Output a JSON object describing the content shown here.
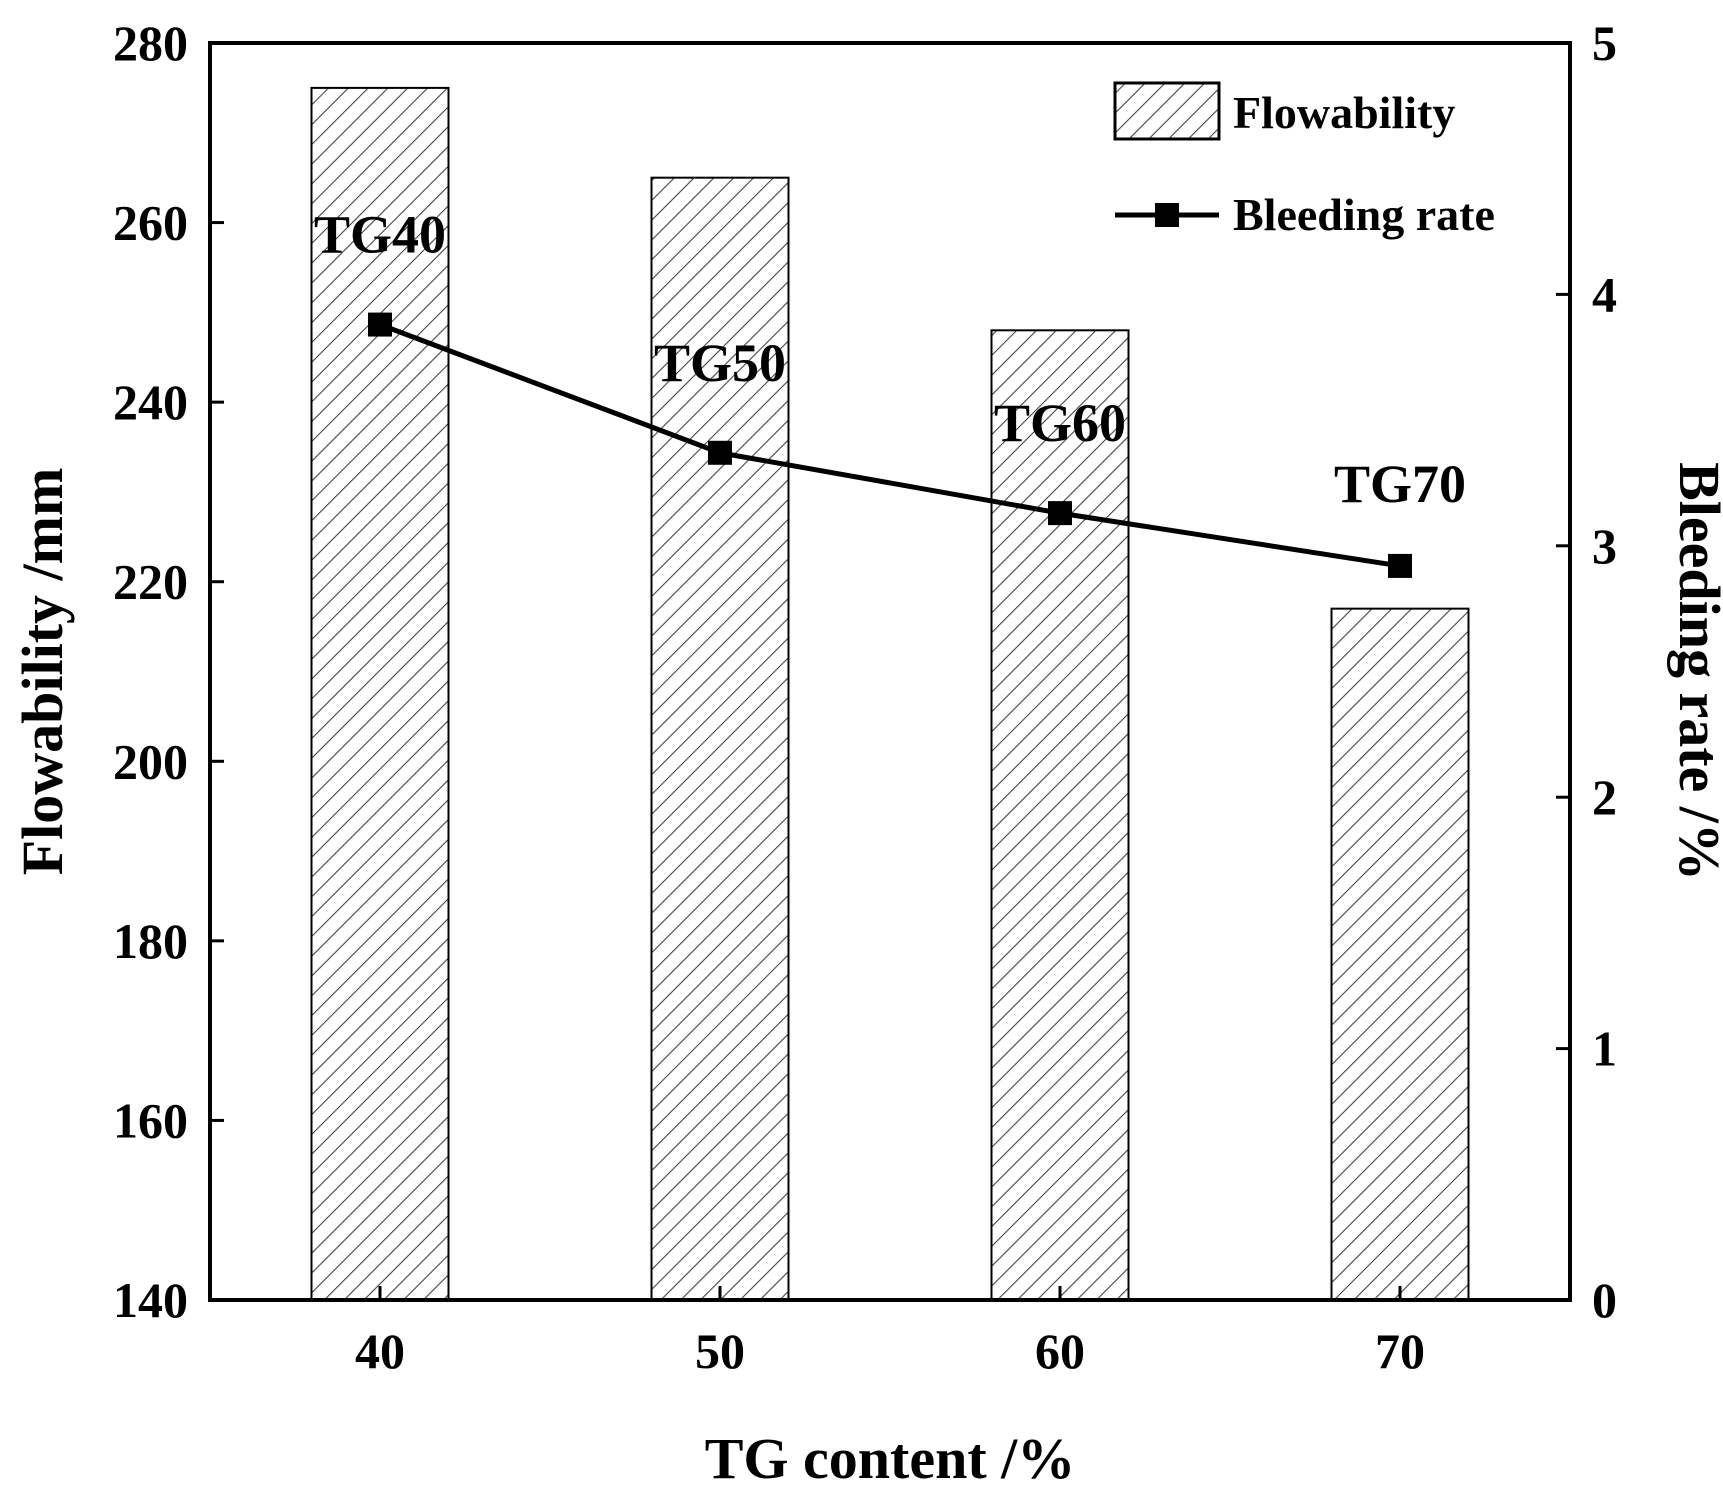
{
  "chart_data": {
    "type": "bar+line",
    "title": "",
    "categories": [
      "40",
      "50",
      "60",
      "70"
    ],
    "xlabel": "TG content /%",
    "ylabel_left": "Flowability /mm",
    "ylabel_right": "Bleeding rate /%",
    "ylim_left": [
      140,
      280
    ],
    "ylim_right": [
      0,
      5
    ],
    "yticks_left": [
      "140",
      "160",
      "180",
      "200",
      "220",
      "240",
      "260",
      "280"
    ],
    "yticks_right": [
      "0",
      "1",
      "2",
      "3",
      "4",
      "5"
    ],
    "grid": false,
    "legend_position": "top-right",
    "series": [
      {
        "name": "Flowability",
        "type": "bar",
        "axis": "left",
        "pattern": "hatched",
        "values": [
          275,
          265,
          248,
          217
        ]
      },
      {
        "name": "Bleeding rate",
        "type": "line",
        "axis": "right",
        "marker": "square",
        "values": [
          3.88,
          3.37,
          3.13,
          2.92
        ],
        "point_labels": [
          "TG40",
          "TG50",
          "TG60",
          "TG70"
        ]
      }
    ]
  }
}
